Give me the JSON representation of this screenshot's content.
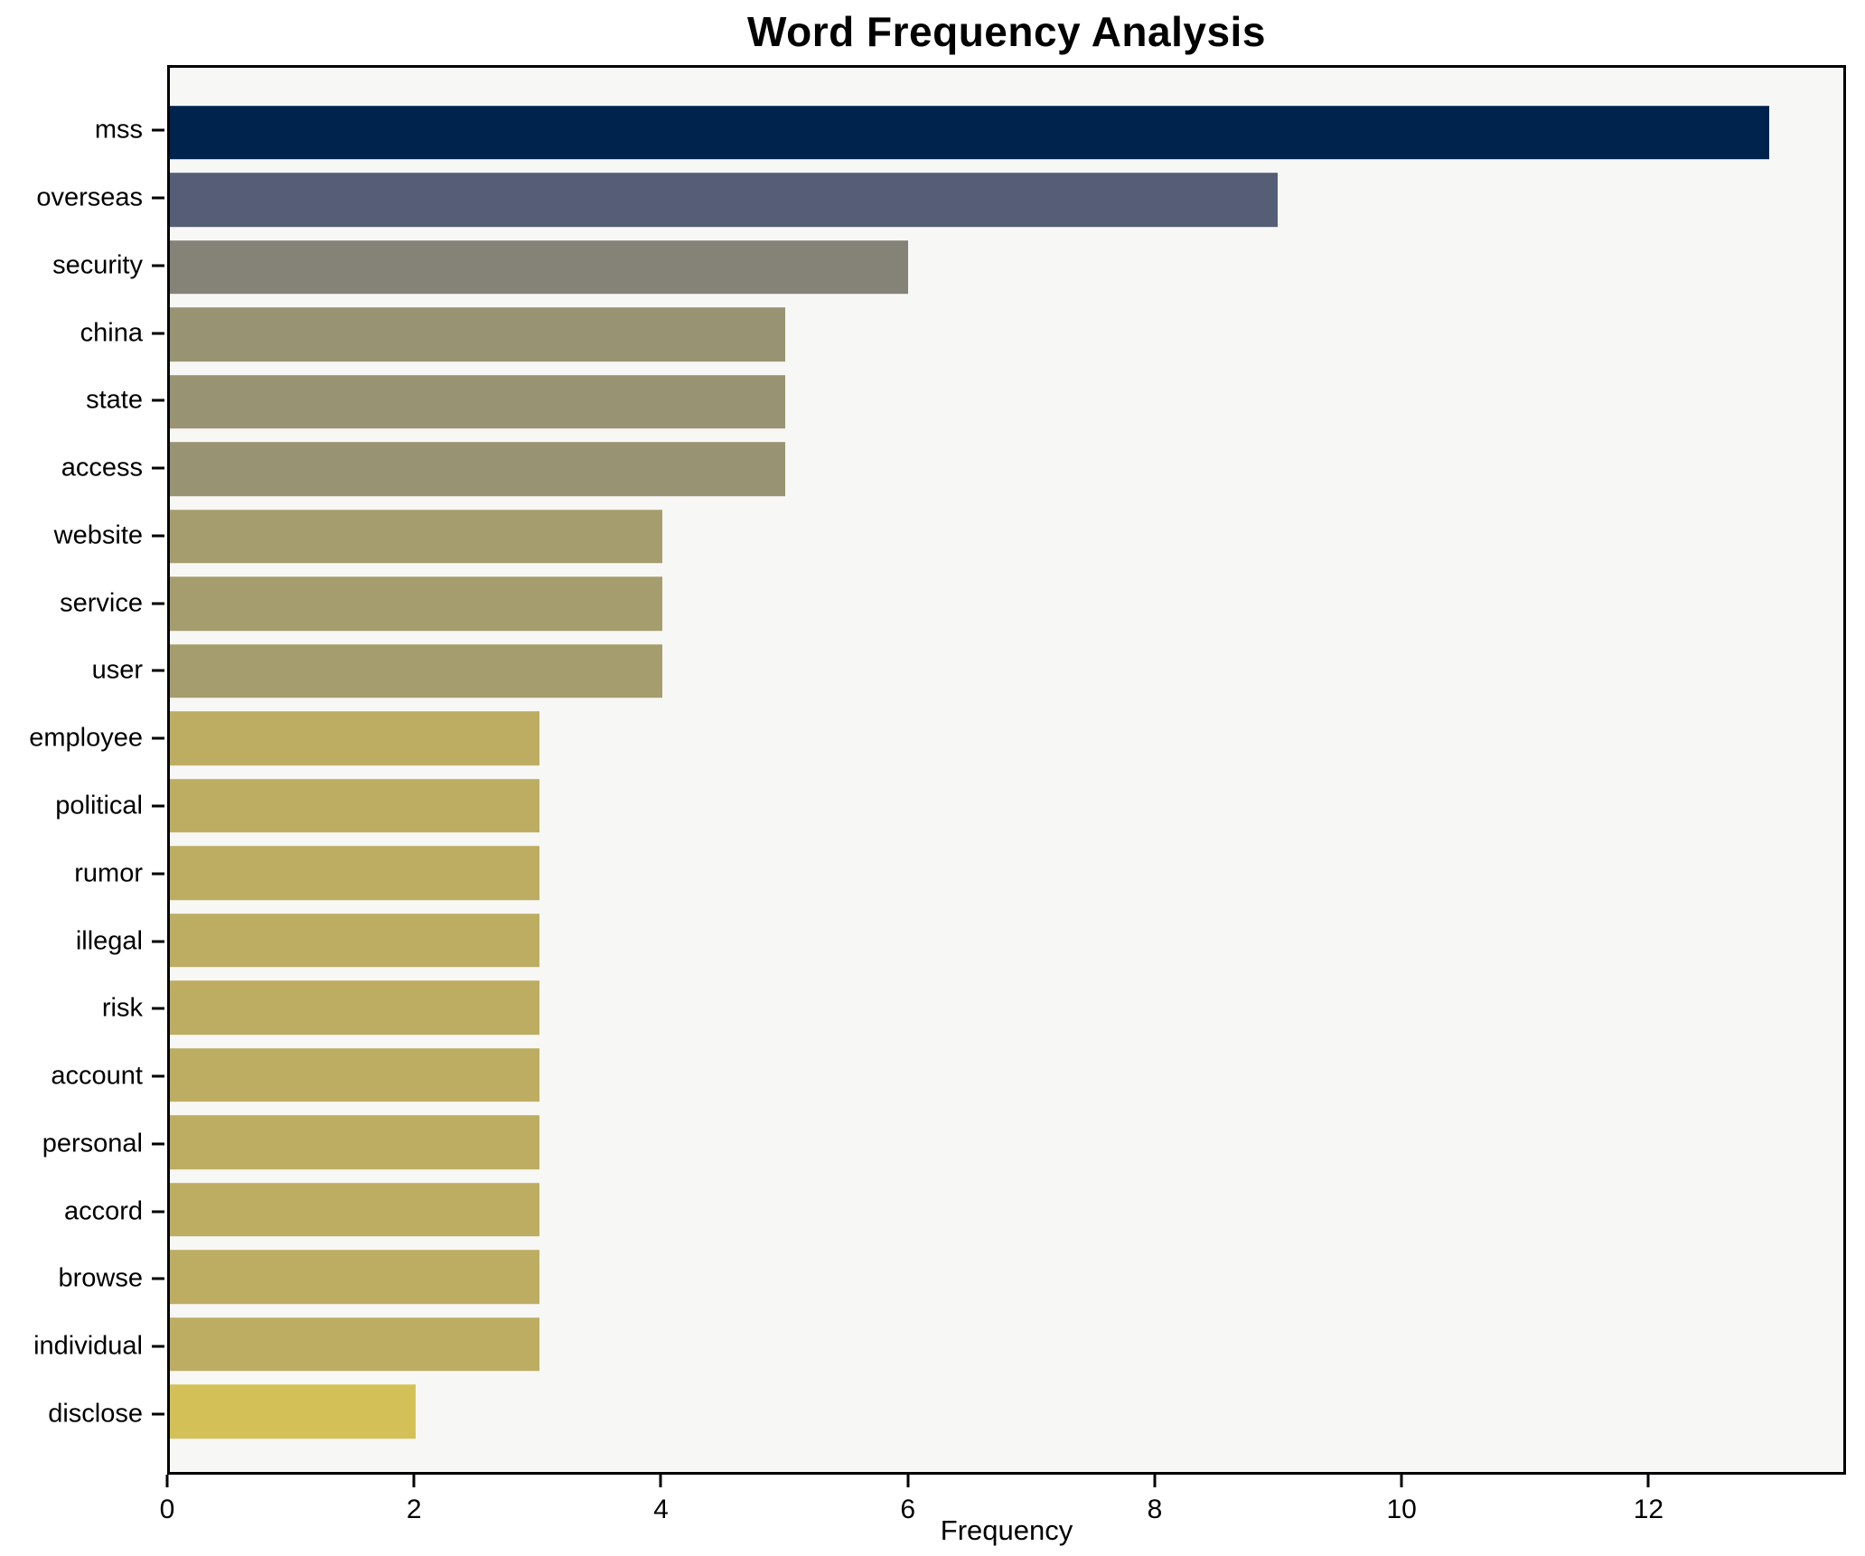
{
  "figure": {
    "title": "Word Frequency Analysis",
    "background_color": "#ffffff",
    "plot_background_color": "#f7f7f5",
    "spine_color": "#000000",
    "text_color": "#000000"
  },
  "chart_data": {
    "type": "bar",
    "orientation": "horizontal",
    "title": "Word Frequency Analysis",
    "xlabel": "Frequency",
    "ylabel": "",
    "categories": [
      "mss",
      "overseas",
      "security",
      "china",
      "state",
      "access",
      "website",
      "service",
      "user",
      "employee",
      "political",
      "rumor",
      "illegal",
      "risk",
      "account",
      "personal",
      "accord",
      "browse",
      "individual",
      "disclose"
    ],
    "values": [
      13,
      9,
      6,
      5,
      5,
      5,
      4,
      4,
      4,
      3,
      3,
      3,
      3,
      3,
      3,
      3,
      3,
      3,
      3,
      2
    ],
    "bar_colors": [
      "#00234d",
      "#565d76",
      "#858277",
      "#989372",
      "#989372",
      "#989372",
      "#a69d6e",
      "#a69d6e",
      "#a69d6e",
      "#bdad63",
      "#bdad63",
      "#bdad63",
      "#bdad63",
      "#bdad63",
      "#bdad63",
      "#bdad63",
      "#bdad63",
      "#bdad63",
      "#bdad63",
      "#d3c158"
    ],
    "xlim": [
      0,
      13.6
    ],
    "xticks": [
      0,
      2,
      4,
      6,
      8,
      10,
      12
    ],
    "grid": false,
    "legend": null,
    "bar_thickness_ratio": 0.8,
    "y_span_units": 20.86,
    "y_first_center_offset_units": 0.965
  }
}
